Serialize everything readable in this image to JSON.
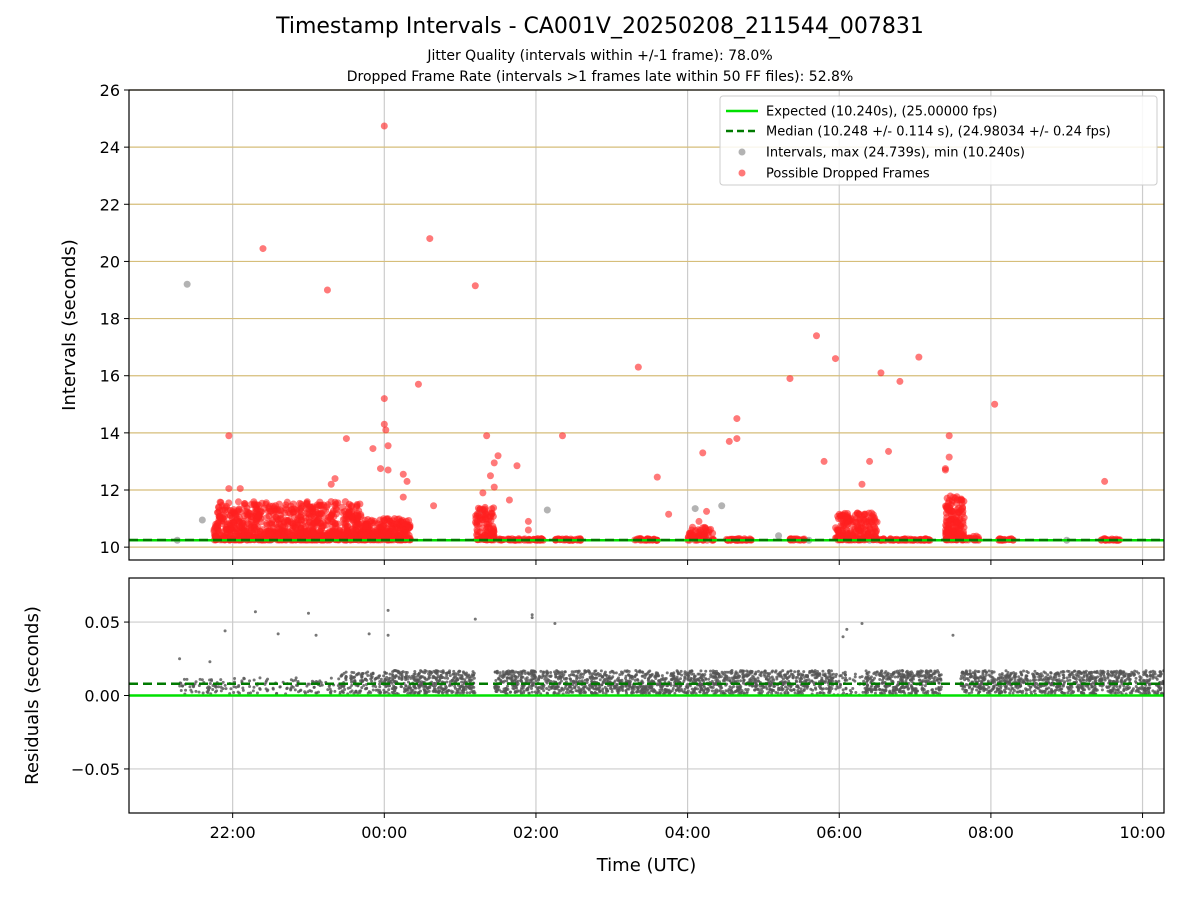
{
  "figure": {
    "title": "Timestamp Intervals - CA001V_20250208_211544_007831",
    "subtitle_1": "Jitter Quality (intervals within +/-1 frame): 78.0%",
    "subtitle_2": "Dropped Frame Rate (intervals >1 frames late within 50 FF files): 52.8%"
  },
  "colors": {
    "expected": "#00e000",
    "median": "#007a00",
    "intervals": "#999999",
    "dropped": "#ff2020",
    "residuals": "#555555",
    "h_grid_top": "#d6be7a",
    "grid": "#cccccc"
  },
  "chart_data": [
    {
      "type": "scatter",
      "title": "",
      "xlabel": "",
      "ylabel": "Intervals (seconds)",
      "xlim_hours": [
        20.633,
        34.283
      ],
      "ylim": [
        9.55,
        26
      ],
      "x_tick_positions_hours": [
        22,
        24,
        26,
        28,
        30,
        32,
        34
      ],
      "x_tick_labels": [
        "22:00",
        "00:00",
        "02:00",
        "04:00",
        "06:00",
        "08:00",
        "10:00"
      ],
      "y_ticks": [
        10,
        12,
        14,
        16,
        18,
        20,
        22,
        24,
        26
      ],
      "grid": "on",
      "legend_position": "top-right",
      "legend": [
        "Expected (10.240s), (25.00000 fps)",
        "Median (10.248 +/- 0.114 s), (24.98034 +/- 0.24 fps)",
        "Intervals, max (24.739s), min (10.240s)",
        "Possible Dropped Frames"
      ],
      "expected_line": 10.24,
      "median_line": 10.248,
      "series": [
        {
          "name": "Intervals, max (24.739s), min (10.240s)",
          "points": [
            [
              21.27,
              10.24
            ],
            [
              21.4,
              19.2
            ],
            [
              21.6,
              10.95
            ],
            [
              22.5,
              10.24
            ],
            [
              23.5,
              10.24
            ],
            [
              25.25,
              11.2
            ],
            [
              26.15,
              11.3
            ],
            [
              27.6,
              10.24
            ],
            [
              28.1,
              11.35
            ],
            [
              28.45,
              11.45
            ],
            [
              29.2,
              10.4
            ],
            [
              29.6,
              10.24
            ],
            [
              30.4,
              10.24
            ],
            [
              31.8,
              10.24
            ],
            [
              33.0,
              10.24
            ]
          ]
        },
        {
          "name": "Possible Dropped Frames",
          "bands": [
            {
              "x_range": [
                21.75,
                23.7
              ],
              "y_range": [
                10.25,
                11.6
              ],
              "count": 900
            },
            {
              "x_range": [
                23.7,
                24.35
              ],
              "y_range": [
                10.25,
                11.0
              ],
              "count": 260
            },
            {
              "x_range": [
                25.2,
                25.45
              ],
              "y_range": [
                10.25,
                11.4
              ],
              "count": 110
            },
            {
              "x_range": [
                25.5,
                26.1
              ],
              "y_range": [
                10.24,
                10.3
              ],
              "count": 60
            },
            {
              "x_range": [
                26.25,
                26.6
              ],
              "y_range": [
                10.24,
                10.3
              ],
              "count": 35
            },
            {
              "x_range": [
                27.3,
                27.6
              ],
              "y_range": [
                10.24,
                10.3
              ],
              "count": 30
            },
            {
              "x_range": [
                28.0,
                28.35
              ],
              "y_range": [
                10.24,
                10.7
              ],
              "count": 70
            },
            {
              "x_range": [
                28.45,
                28.85
              ],
              "y_range": [
                10.24,
                10.3
              ],
              "count": 40
            },
            {
              "x_range": [
                29.35,
                29.55
              ],
              "y_range": [
                10.24,
                10.3
              ],
              "count": 22
            },
            {
              "x_range": [
                29.95,
                30.5
              ],
              "y_range": [
                10.25,
                11.2
              ],
              "count": 220
            },
            {
              "x_range": [
                30.5,
                31.2
              ],
              "y_range": [
                10.24,
                10.3
              ],
              "count": 70
            },
            {
              "x_range": [
                31.4,
                31.65
              ],
              "y_range": [
                10.25,
                11.8
              ],
              "count": 170
            },
            {
              "x_range": [
                31.65,
                31.85
              ],
              "y_range": [
                10.24,
                10.4
              ],
              "count": 20
            },
            {
              "x_range": [
                32.1,
                32.3
              ],
              "y_range": [
                10.24,
                10.3
              ],
              "count": 22
            },
            {
              "x_range": [
                33.45,
                33.7
              ],
              "y_range": [
                10.24,
                10.3
              ],
              "count": 25
            }
          ],
          "points": [
            [
              21.95,
              13.9
            ],
            [
              21.95,
              12.05
            ],
            [
              22.1,
              12.05
            ],
            [
              22.4,
              20.45
            ],
            [
              23.25,
              19.0
            ],
            [
              23.3,
              12.2
            ],
            [
              23.35,
              12.4
            ],
            [
              23.5,
              13.8
            ],
            [
              23.85,
              13.45
            ],
            [
              23.95,
              12.75
            ],
            [
              24.0,
              24.74
            ],
            [
              24.0,
              15.2
            ],
            [
              24.0,
              14.3
            ],
            [
              24.02,
              14.1
            ],
            [
              24.05,
              13.55
            ],
            [
              24.05,
              12.7
            ],
            [
              24.25,
              12.55
            ],
            [
              24.3,
              12.3
            ],
            [
              24.25,
              11.75
            ],
            [
              24.45,
              15.7
            ],
            [
              24.6,
              20.8
            ],
            [
              24.65,
              11.45
            ],
            [
              25.2,
              19.15
            ],
            [
              25.3,
              11.9
            ],
            [
              25.35,
              13.9
            ],
            [
              25.4,
              12.5
            ],
            [
              25.45,
              12.95
            ],
            [
              25.5,
              13.2
            ],
            [
              25.45,
              12.1
            ],
            [
              25.65,
              11.65
            ],
            [
              25.75,
              12.85
            ],
            [
              25.9,
              10.9
            ],
            [
              25.9,
              10.6
            ],
            [
              26.35,
              13.9
            ],
            [
              27.35,
              16.3
            ],
            [
              27.6,
              12.45
            ],
            [
              27.75,
              11.15
            ],
            [
              28.15,
              10.9
            ],
            [
              28.2,
              13.3
            ],
            [
              28.25,
              11.25
            ],
            [
              28.55,
              13.7
            ],
            [
              28.65,
              14.5
            ],
            [
              28.65,
              13.8
            ],
            [
              29.35,
              15.9
            ],
            [
              29.7,
              17.4
            ],
            [
              29.8,
              13.0
            ],
            [
              29.95,
              16.6
            ],
            [
              30.3,
              12.2
            ],
            [
              30.4,
              13.0
            ],
            [
              30.55,
              16.1
            ],
            [
              30.65,
              13.35
            ],
            [
              30.8,
              15.8
            ],
            [
              31.05,
              16.65
            ],
            [
              31.45,
              13.9
            ],
            [
              31.45,
              13.15
            ],
            [
              31.4,
              12.7
            ],
            [
              31.4,
              12.75
            ],
            [
              32.05,
              15.0
            ],
            [
              33.5,
              12.3
            ]
          ]
        }
      ]
    },
    {
      "type": "scatter",
      "title": "",
      "xlabel": "Time (UTC)",
      "ylabel": "Residuals (seconds)",
      "xlim_hours": [
        20.633,
        34.283
      ],
      "ylim": [
        -0.08,
        0.08
      ],
      "y_ticks": [
        0.05,
        0.0,
        -0.05
      ],
      "y_tick_labels": [
        "0.05",
        "0.00",
        "−0.05"
      ],
      "x_tick_labels": [
        "22:00",
        "00:00",
        "02:00",
        "04:00",
        "06:00",
        "08:00",
        "10:00"
      ],
      "grid": "on",
      "expected_line": 0.0,
      "median_line": 0.008,
      "series": [
        {
          "name": "",
          "bands": [
            {
              "x_range": [
                21.3,
                23.4
              ],
              "y_range": [
                0.001,
                0.012
              ],
              "count": 160
            },
            {
              "x_range": [
                23.4,
                24.1
              ],
              "y_range": [
                0.001,
                0.016
              ],
              "count": 160
            },
            {
              "x_range": [
                24.1,
                25.2
              ],
              "y_range": [
                0.001,
                0.017
              ],
              "count": 380
            },
            {
              "x_range": [
                25.45,
                26.9
              ],
              "y_range": [
                0.001,
                0.017
              ],
              "count": 480
            },
            {
              "x_range": [
                26.9,
                28.3
              ],
              "y_range": [
                0.001,
                0.017
              ],
              "count": 480
            },
            {
              "x_range": [
                28.3,
                29.9
              ],
              "y_range": [
                0.001,
                0.017
              ],
              "count": 520
            },
            {
              "x_range": [
                29.9,
                30.35
              ],
              "y_range": [
                0.0,
                0.016
              ],
              "count": 60
            },
            {
              "x_range": [
                30.35,
                31.35
              ],
              "y_range": [
                0.001,
                0.017
              ],
              "count": 350
            },
            {
              "x_range": [
                31.6,
                32.9
              ],
              "y_range": [
                0.001,
                0.017
              ],
              "count": 430
            },
            {
              "x_range": [
                32.9,
                34.28
              ],
              "y_range": [
                0.001,
                0.017
              ],
              "count": 450
            }
          ],
          "points": [
            [
              21.3,
              0.025
            ],
            [
              21.7,
              0.023
            ],
            [
              21.9,
              0.044
            ],
            [
              22.3,
              0.057
            ],
            [
              22.6,
              0.042
            ],
            [
              23.0,
              0.056
            ],
            [
              23.1,
              0.041
            ],
            [
              23.8,
              0.042
            ],
            [
              24.05,
              0.058
            ],
            [
              24.05,
              0.041
            ],
            [
              25.2,
              0.052
            ],
            [
              25.95,
              0.055
            ],
            [
              25.95,
              0.053
            ],
            [
              26.25,
              0.049
            ],
            [
              30.05,
              0.04
            ],
            [
              30.1,
              0.045
            ],
            [
              30.3,
              0.049
            ],
            [
              31.5,
              0.041
            ]
          ]
        }
      ]
    }
  ]
}
